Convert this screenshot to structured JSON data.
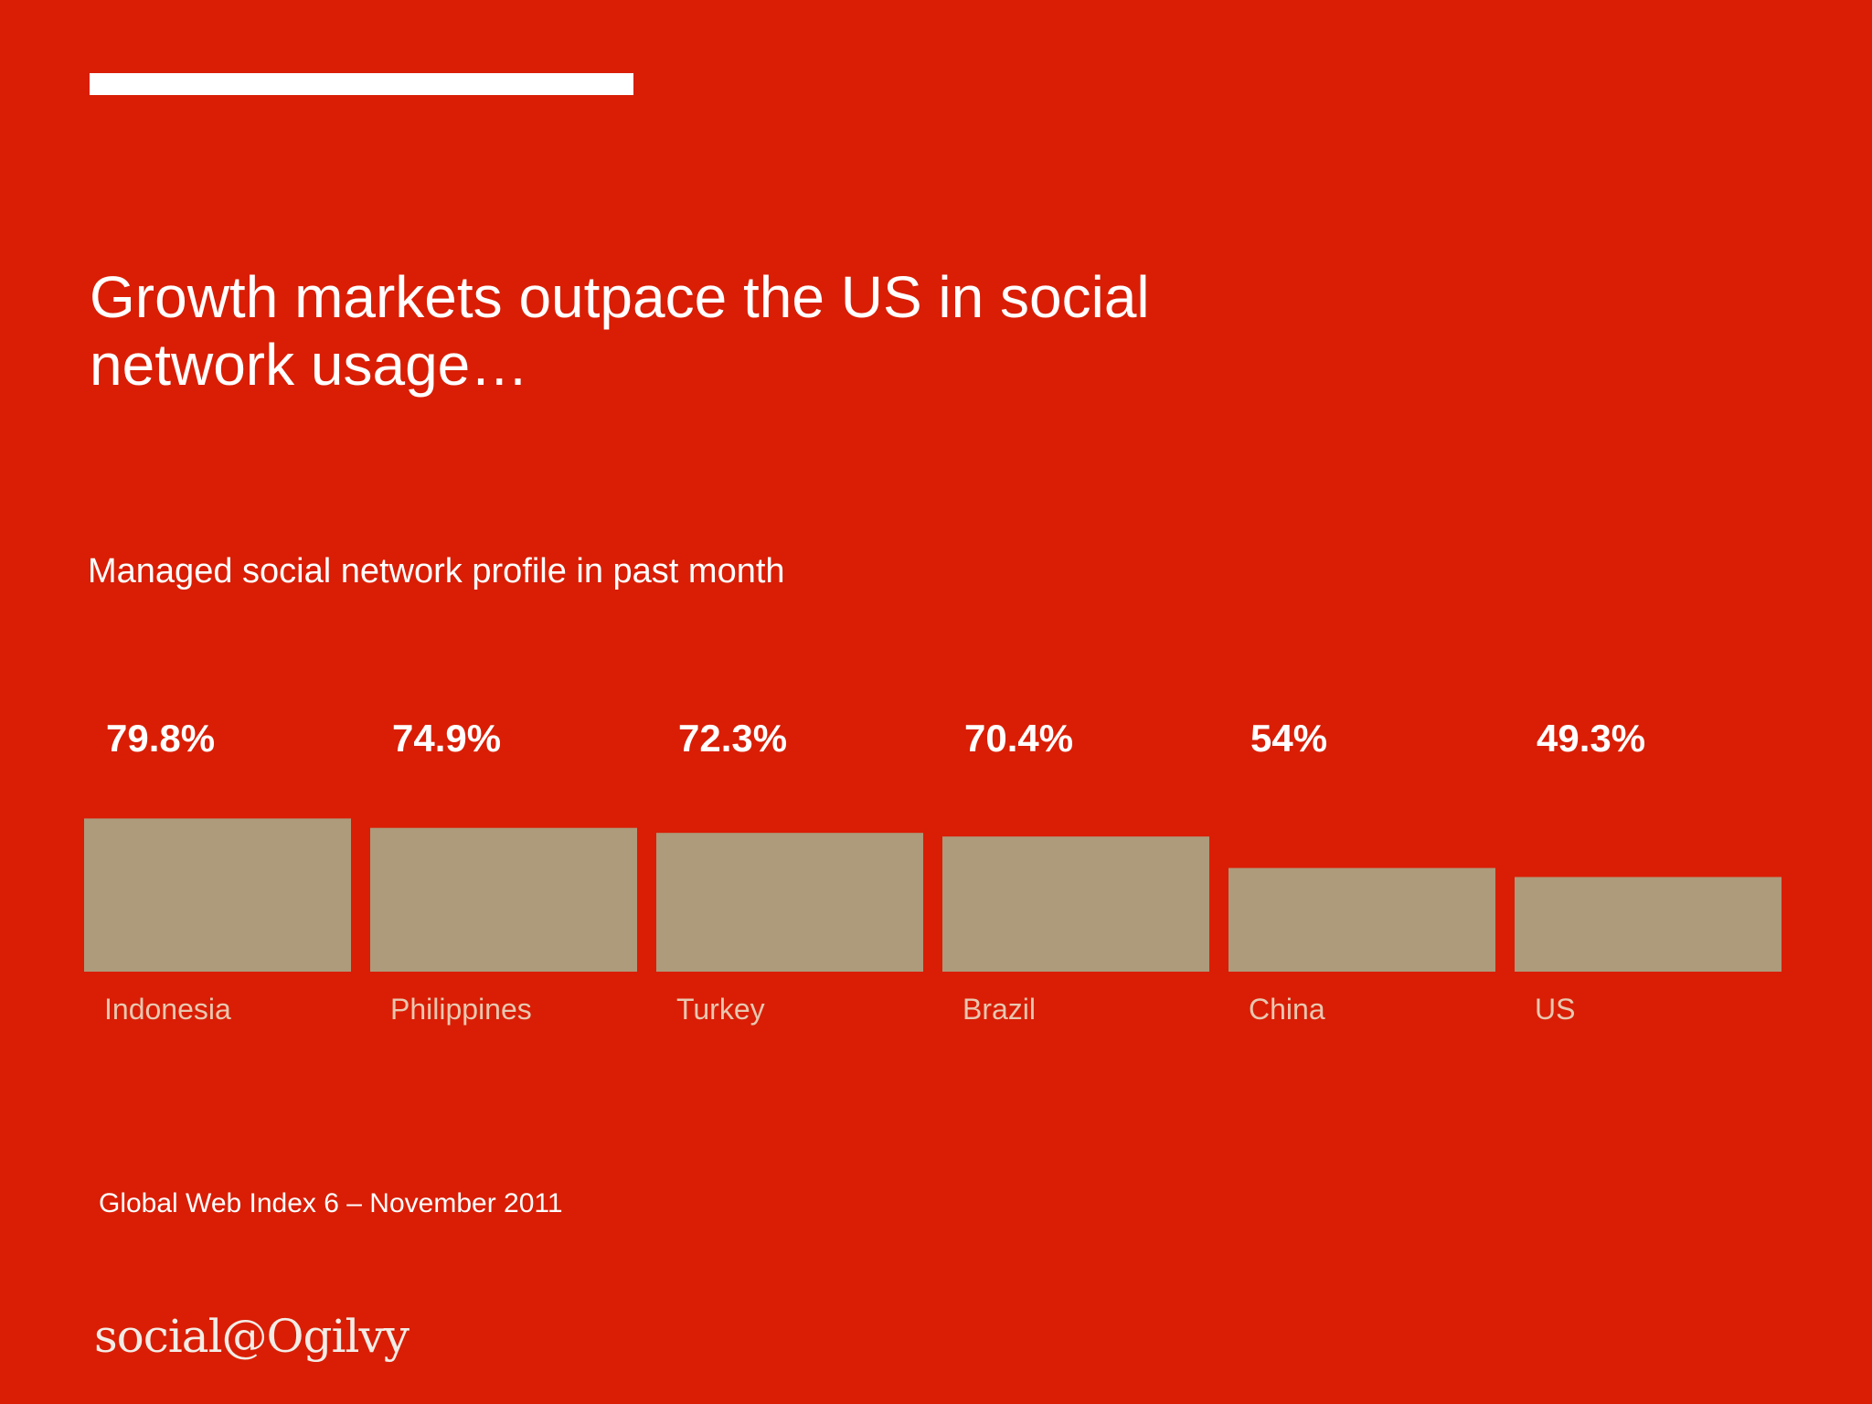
{
  "slide": {
    "title": "Growth markets outpace the US in social network usage…",
    "subtitle": "Managed social network profile in past month",
    "source": "Global Web Index 6 – November 2011",
    "logo_text": "social@Ogilvy"
  },
  "colors": {
    "background": "#d91e05",
    "bar": "#ad9b7b",
    "category_label": "#e8c7b0",
    "text": "#ffffff"
  },
  "chart_data": {
    "type": "bar",
    "categories": [
      "Indonesia",
      "Philippines",
      "Turkey",
      "Brazil",
      "China",
      "US"
    ],
    "values": [
      79.8,
      74.9,
      72.3,
      70.4,
      54,
      49.3
    ],
    "value_labels": [
      "79.8%",
      "74.9%",
      "72.3%",
      "70.4%",
      "54%",
      "49.3%"
    ],
    "unit": "%",
    "title": "Managed social network profile in past month",
    "xlabel": "",
    "ylabel": "",
    "grid": false,
    "legend": "none"
  }
}
